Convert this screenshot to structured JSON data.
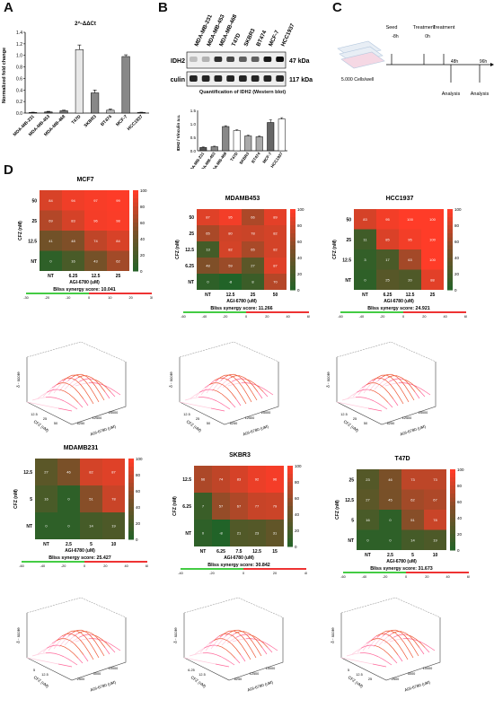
{
  "panels": {
    "A": "A",
    "B": "B",
    "C": "C",
    "D": "D"
  },
  "panelA": {
    "chart_data": {
      "type": "bar",
      "title": "2^-ΔΔCt",
      "ylabel": "Normalized fold change",
      "categories": [
        "MDA-MB-231",
        "MDA-MB-453",
        "MDA-MB-468",
        "T47D",
        "SKBR3",
        "BT474",
        "MCF-7",
        "HCC1937"
      ],
      "values": [
        0.01,
        0.02,
        0.04,
        1.1,
        0.35,
        0.05,
        0.98,
        0.01
      ],
      "errors": [
        0.005,
        0.01,
        0.01,
        0.08,
        0.05,
        0.02,
        0.03,
        0.005
      ],
      "ylim": [
        0,
        1.4
      ],
      "yticks": [
        "0.0",
        "0.2",
        "0.4",
        "0.6",
        "0.8",
        "1.0",
        "1.2",
        "1.4"
      ],
      "colors": [
        "#333333",
        "#555555",
        "#777777",
        "#e8e8e8",
        "#888888",
        "#bbbbbb",
        "#888888",
        "#444444"
      ]
    }
  },
  "panelB": {
    "cell_lines": [
      "MDA-MB-231",
      "MDA-MB-453",
      "MDA-MB-468",
      "T47D",
      "SKBR3",
      "BT474",
      "MCF-7",
      "HCC1937"
    ],
    "row1_label": "IDH2",
    "row1_size": "47 kDa",
    "row2_label": "Vinculin",
    "row2_size": "117 kDa",
    "quant_title": "Quantification of IDH2 (Western blot)",
    "chart_data": {
      "type": "bar",
      "ylabel": "IDH2 / Vinculin a.u.",
      "categories": [
        "MDA-MB-231",
        "MDA-MB-453",
        "MDA-MB-468",
        "T47D",
        "SKBR3",
        "BT474",
        "MCF-7",
        "HCC1937"
      ],
      "values": [
        0.12,
        0.15,
        0.9,
        0.75,
        0.55,
        0.52,
        1.05,
        1.18
      ],
      "errors": [
        0.02,
        0.02,
        0.03,
        0.03,
        0.03,
        0.03,
        0.1,
        0.05
      ],
      "ylim": [
        0,
        1.5
      ],
      "yticks": [
        "0.0",
        "0.5",
        "1.0",
        "1.5"
      ],
      "colors": [
        "#555555",
        "#888888",
        "#888888",
        "#ffffff",
        "#aaaaaa",
        "#aaaaaa",
        "#666666",
        "#ffffff"
      ]
    }
  },
  "panelC": {
    "seed": "Seed",
    "t1": "Treatment",
    "t2": "Treatment",
    "m8": "-8h",
    "h0": "0h",
    "h48": "48h",
    "h96": "96h",
    "analysis1": "Analysis",
    "analysis2": "Analysis",
    "cells": "5.000 Cells/well"
  },
  "heatmaps": [
    {
      "title": "MCF7",
      "xlabel": "AGI-6780 (uM)",
      "ylabel": "CFZ (nM)",
      "xticks": [
        "NT",
        "6.25",
        "12.5",
        "25"
      ],
      "yticks": [
        "50",
        "25",
        "12.5",
        "NT"
      ],
      "cells": [
        [
          84,
          94,
          97,
          99
        ],
        [
          69,
          83,
          96,
          98
        ],
        [
          41,
          48,
          74,
          84
        ],
        [
          0,
          16,
          43,
          62
        ]
      ],
      "bliss": "Bliss synergy score: 10.041",
      "bliss_ticks": [
        "-30",
        "-20",
        "-10",
        "0",
        "10",
        "20",
        "30"
      ],
      "scale": [
        "100",
        "80",
        "60",
        "40",
        "20",
        "0"
      ]
    },
    {
      "title": "MDAMB453",
      "xlabel": "AGI-6780 (uM)",
      "ylabel": "CFZ (nM)",
      "xticks": [
        "NT",
        "12.5",
        "25",
        "50"
      ],
      "yticks": [
        "50",
        "25",
        "12.5",
        "6.25",
        "NT"
      ],
      "cells": [
        [
          87,
          95,
          66,
          89
        ],
        [
          65,
          80,
          78,
          82
        ],
        [
          13,
          82,
          65,
          82
        ],
        [
          48,
          59,
          27,
          87
        ],
        [
          0,
          -8,
          8,
          70
        ]
      ],
      "bliss": "Bliss synergy score: 11.266",
      "bliss_ticks": [
        "-60",
        "-40",
        "-20",
        "0",
        "20",
        "40",
        "60"
      ],
      "scale": [
        "100",
        "80",
        "60",
        "40",
        "20",
        "0"
      ]
    },
    {
      "title": "HCC1937",
      "xlabel": "AGI-6780 (uM)",
      "ylabel": "CFZ (nM)",
      "xticks": [
        "NT",
        "6.25",
        "12.5",
        "25"
      ],
      "yticks": [
        "50",
        "25",
        "12.5",
        "NT"
      ],
      "cells": [
        [
          83,
          95,
          100,
          100
        ],
        [
          11,
          85,
          95,
          100
        ],
        [
          3,
          17,
          63,
          100
        ],
        [
          0,
          25,
          20,
          88
        ]
      ],
      "bliss": "Bliss synergy score: 24.921",
      "bliss_ticks": [
        "-60",
        "-40",
        "-20",
        "0",
        "20",
        "40",
        "60"
      ],
      "scale": [
        "100",
        "80",
        "60",
        "40",
        "20",
        "0"
      ]
    },
    {
      "title": "MDAMB231",
      "xlabel": "AGI-6780 (uM)",
      "ylabel": "CFZ (nM)",
      "xticks": [
        "NT",
        "2.5",
        "5",
        "10"
      ],
      "yticks": [
        "12.5",
        "5",
        "NT"
      ],
      "cells": [
        [
          27,
          46,
          82,
          87
        ],
        [
          16,
          0,
          51,
          78
        ],
        [
          0,
          0,
          14,
          19
        ]
      ],
      "bliss": "Bliss synergy score: 25.427",
      "bliss_ticks": [
        "-60",
        "-40",
        "-20",
        "0",
        "20",
        "40",
        "60"
      ],
      "scale": [
        "100",
        "80",
        "60",
        "40",
        "20",
        "0"
      ]
    },
    {
      "title": "SKBR3",
      "xlabel": "AGI-6780 (uM)",
      "ylabel": "CFZ (nM)",
      "xticks": [
        "NT",
        "6.25",
        "7.5",
        "12.5",
        "15"
      ],
      "yticks": [
        "12.5",
        "6.25",
        "NT"
      ],
      "cells": [
        [
          66,
          74,
          83,
          92,
          96
        ],
        [
          7,
          57,
          67,
          77,
          79
        ],
        [
          0,
          -8,
          21,
          23,
          31
        ]
      ],
      "bliss": "Bliss synergy score: 30.842",
      "bliss_ticks": [
        "-40",
        "-20",
        "0",
        "20",
        "40"
      ],
      "scale": [
        "100",
        "80",
        "60",
        "40",
        "20",
        "0"
      ]
    },
    {
      "title": "T47D",
      "xlabel": "AGI-6780 (uM)",
      "ylabel": "CFZ (nM)",
      "xticks": [
        "NT",
        "2.5",
        "5",
        "10"
      ],
      "yticks": [
        "25",
        "12.5",
        "5",
        "NT"
      ],
      "cells": [
        [
          23,
          46,
          73,
          73
        ],
        [
          27,
          45,
          62,
          67
        ],
        [
          16,
          0,
          51,
          78
        ],
        [
          0,
          0,
          14,
          19
        ]
      ],
      "bliss": "Bliss synergy score: 31.673",
      "bliss_ticks": [
        "-60",
        "-40",
        "-20",
        "0",
        "20",
        "40",
        "60"
      ],
      "scale": [
        "100",
        "80",
        "60",
        "40",
        "20",
        "0"
      ]
    }
  ],
  "surfaces": [
    {
      "zlabel": "δ - score",
      "xlabel": "AGI-6780 (uM)",
      "ylabel": "CFZ (nM)",
      "xt": [
        "6250",
        "12500",
        "25000"
      ],
      "yt": [
        "12.5",
        "25",
        "50"
      ]
    },
    {
      "zlabel": "δ - score",
      "xlabel": "AGI-6780 (uM)",
      "ylabel": "CFZ (nM)",
      "xt": [
        "6250",
        "12500",
        "25000"
      ],
      "yt": [
        "12.5",
        "25",
        "50"
      ]
    },
    {
      "zlabel": "δ - score",
      "xlabel": "AGI-6780 (uM)",
      "ylabel": "CFZ (nM)",
      "xt": [
        "6250",
        "12500",
        "25000"
      ],
      "yt": [
        "12.5",
        "25",
        "50"
      ]
    },
    {
      "zlabel": "δ - score",
      "xlabel": "AGI-6780 (uM)",
      "ylabel": "CFZ (nM)",
      "xt": [
        "2500",
        "5000",
        "10000"
      ],
      "yt": [
        "5",
        "12.5"
      ]
    },
    {
      "zlabel": "δ - score",
      "xlabel": "AGI-6780 (uM)",
      "ylabel": "CFZ (nM)",
      "xt": [
        "6250",
        "12500",
        "15000"
      ],
      "yt": [
        "6.25",
        "12.5"
      ]
    },
    {
      "zlabel": "δ - score",
      "xlabel": "AGI-6780 (uM)",
      "ylabel": "CFZ (nM)",
      "xt": [
        "2500",
        "5000",
        "10000"
      ],
      "yt": [
        "5",
        "12.5",
        "25"
      ]
    }
  ]
}
